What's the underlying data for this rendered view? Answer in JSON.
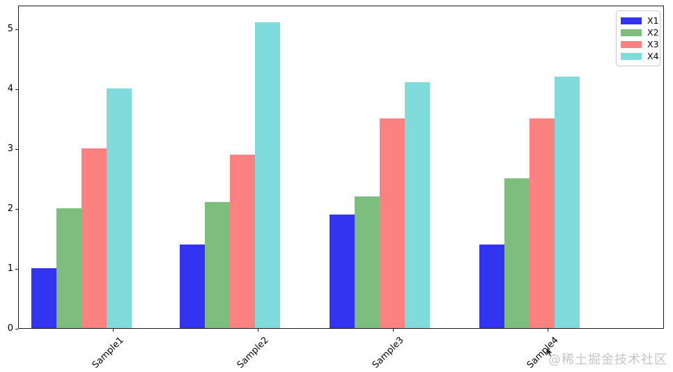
{
  "chart_data": {
    "type": "bar",
    "title": "",
    "xlabel": "",
    "ylabel": "",
    "categories": [
      "Sample1",
      "Sample2",
      "Sample3",
      "Sample4"
    ],
    "series": [
      {
        "name": "X1",
        "color": "#3333f2",
        "values": [
          1.0,
          1.4,
          1.9,
          1.4
        ]
      },
      {
        "name": "X2",
        "color": "#7dbd7d",
        "values": [
          2.0,
          2.1,
          2.2,
          2.5
        ]
      },
      {
        "name": "X3",
        "color": "#fc8181",
        "values": [
          3.0,
          2.9,
          3.5,
          3.5
        ]
      },
      {
        "name": "X4",
        "color": "#80dcdc",
        "values": [
          4.0,
          5.1,
          4.1,
          4.2
        ]
      }
    ],
    "y_ticks": [
      0,
      1,
      2,
      3,
      4,
      5
    ],
    "ylim": [
      0,
      5.4
    ],
    "grid": false,
    "legend_position": "upper right",
    "x_tick_rotation_deg": 45
  },
  "watermark": {
    "text": "@稀土掘金技术社区"
  },
  "style": {
    "background": "#ffffff",
    "spine_color": "#1a1a1a",
    "tick_label_color": "#000000",
    "legend_border_color": "#cccccc",
    "watermark_color": "#c6c6c6"
  }
}
